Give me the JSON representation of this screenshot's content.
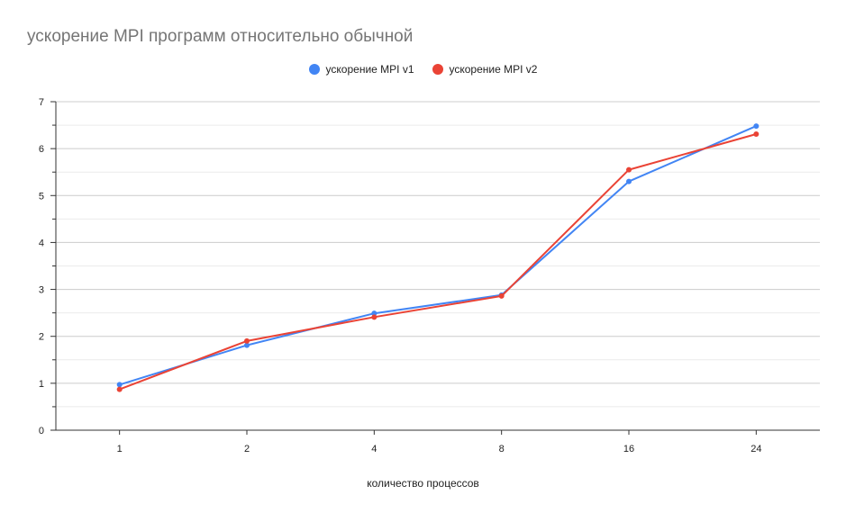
{
  "chart_data": {
    "type": "line",
    "title": "ускорение MPI программ относительно обычной",
    "xlabel": "количество процессов",
    "ylabel": "",
    "categories": [
      "1",
      "2",
      "4",
      "8",
      "16",
      "24"
    ],
    "ylim": [
      0,
      7
    ],
    "yticks": [
      "0",
      "1",
      "2",
      "3",
      "4",
      "5",
      "6",
      "7"
    ],
    "grid": true,
    "legend_position": "top",
    "series": [
      {
        "name": "ускорение MPI v1",
        "color": "#4285f4",
        "values": [
          0.97,
          1.81,
          2.49,
          2.88,
          5.3,
          6.48
        ]
      },
      {
        "name": "ускорение MPI v2",
        "color": "#ea4335",
        "values": [
          0.87,
          1.9,
          2.41,
          2.86,
          5.55,
          6.31
        ]
      }
    ]
  }
}
